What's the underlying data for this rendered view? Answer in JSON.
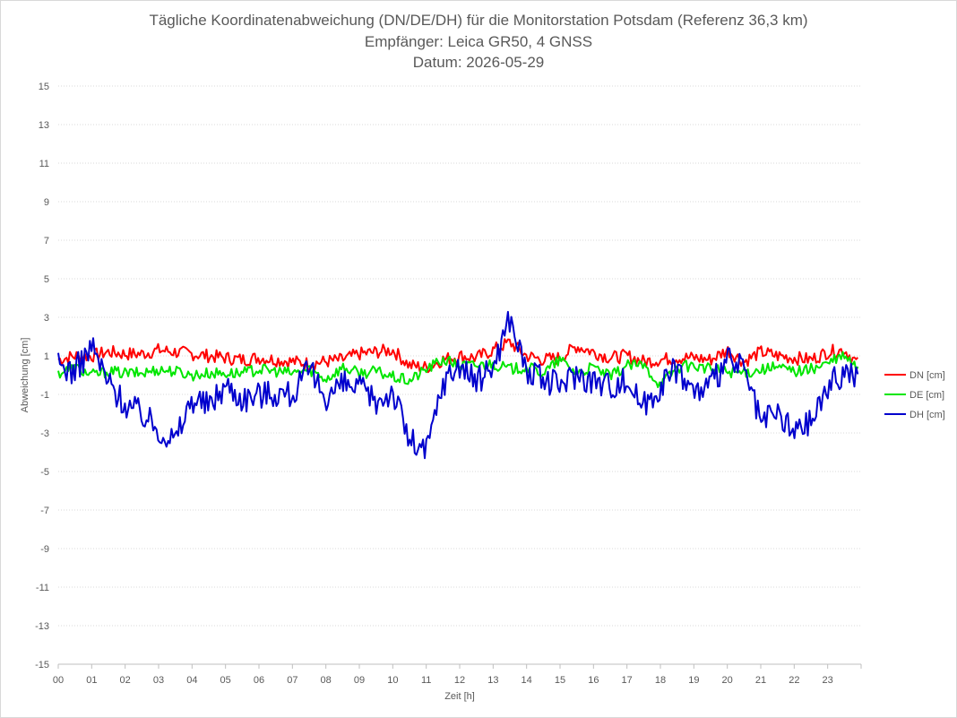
{
  "chart_data": {
    "type": "line",
    "title_lines": [
      "Tägliche Koordinatenabweichung (DN/DE/DH) für die Monitorstation Potsdam (Referenz 36,3 km)",
      "Empfänger: Leica GR50, 4 GNSS",
      "Datum: 2026-05-29"
    ],
    "xlabel": "Zeit [h]",
    "ylabel": "Abweichung [cm]",
    "xlim": [
      0,
      24
    ],
    "ylim": [
      -15,
      15
    ],
    "y_ticks": [
      "15",
      "13",
      "11",
      "9",
      "7",
      "5",
      "3",
      "1",
      "-1",
      "-3",
      "-5",
      "-7",
      "-9",
      "-11",
      "-13",
      "-15"
    ],
    "x_ticks": [
      "00",
      "01",
      "02",
      "03",
      "04",
      "05",
      "06",
      "07",
      "08",
      "09",
      "10",
      "11",
      "12",
      "13",
      "14",
      "15",
      "16",
      "17",
      "18",
      "19",
      "20",
      "21",
      "22",
      "23"
    ],
    "grid": "horizontal dotted",
    "legend_position": "right",
    "x_hours": [
      0,
      0.5,
      1,
      1.5,
      2,
      2.5,
      3,
      3.5,
      4,
      4.5,
      5,
      5.5,
      6,
      6.5,
      7,
      7.5,
      8,
      8.5,
      9,
      9.5,
      10,
      10.5,
      11,
      11.5,
      12,
      12.5,
      13,
      13.5,
      14,
      14.5,
      15,
      15.5,
      16,
      16.5,
      17,
      17.5,
      18,
      18.5,
      19,
      19.5,
      20,
      20.5,
      21,
      21.5,
      22,
      22.5,
      23,
      23.5,
      23.9
    ],
    "series": [
      {
        "name": "DN [cm]",
        "color": "#ff0000",
        "values": [
          0.8,
          1.0,
          1.0,
          1.2,
          1.1,
          1.1,
          1.3,
          1.2,
          1.1,
          1.0,
          0.9,
          0.8,
          0.9,
          0.8,
          0.7,
          0.6,
          0.7,
          0.8,
          1.1,
          1.2,
          1.3,
          0.5,
          0.4,
          0.8,
          1.0,
          0.9,
          1.3,
          1.7,
          1.0,
          0.8,
          0.9,
          1.5,
          1.2,
          0.9,
          1.0,
          0.7,
          0.8,
          0.9,
          0.9,
          0.8,
          1.3,
          0.7,
          1.2,
          1.0,
          0.9,
          0.8,
          1.2,
          1.3,
          0.6
        ]
      },
      {
        "name": "DE [cm]",
        "color": "#00e600",
        "values": [
          0.1,
          0.4,
          0.0,
          0.2,
          0.1,
          0.1,
          0.3,
          0.2,
          0.0,
          0.1,
          0.1,
          0.1,
          0.3,
          0.2,
          0.1,
          0.3,
          -0.2,
          0.4,
          0.1,
          0.2,
          -0.1,
          -0.3,
          0.3,
          0.8,
          0.5,
          0.5,
          0.6,
          0.3,
          0.4,
          0.1,
          0.8,
          0.1,
          0.4,
          -0.1,
          0.5,
          0.5,
          -0.5,
          0.4,
          0.5,
          0.3,
          0.2,
          0.1,
          0.3,
          0.4,
          0.2,
          0.3,
          0.6,
          1.0,
          0.3
        ]
      },
      {
        "name": "DH [cm]",
        "color": "#0000cd",
        "values": [
          0.5,
          0.2,
          1.5,
          -0.4,
          -1.5,
          -2.0,
          -2.8,
          -3.4,
          -1.2,
          -1.6,
          -0.5,
          -1.2,
          -1.0,
          -0.9,
          -1.0,
          0.2,
          -1.1,
          -0.5,
          -0.7,
          -1.4,
          -0.8,
          -3.4,
          -4.0,
          -0.4,
          0.6,
          -0.4,
          0.5,
          3.0,
          0.2,
          -0.3,
          -0.5,
          0.1,
          -0.3,
          -0.5,
          -0.3,
          -1.6,
          -0.5,
          0.4,
          -0.9,
          -0.6,
          0.8,
          0.3,
          -2.5,
          -2.0,
          -3.0,
          -2.4,
          -0.6,
          0.2,
          0.0
        ]
      }
    ]
  }
}
